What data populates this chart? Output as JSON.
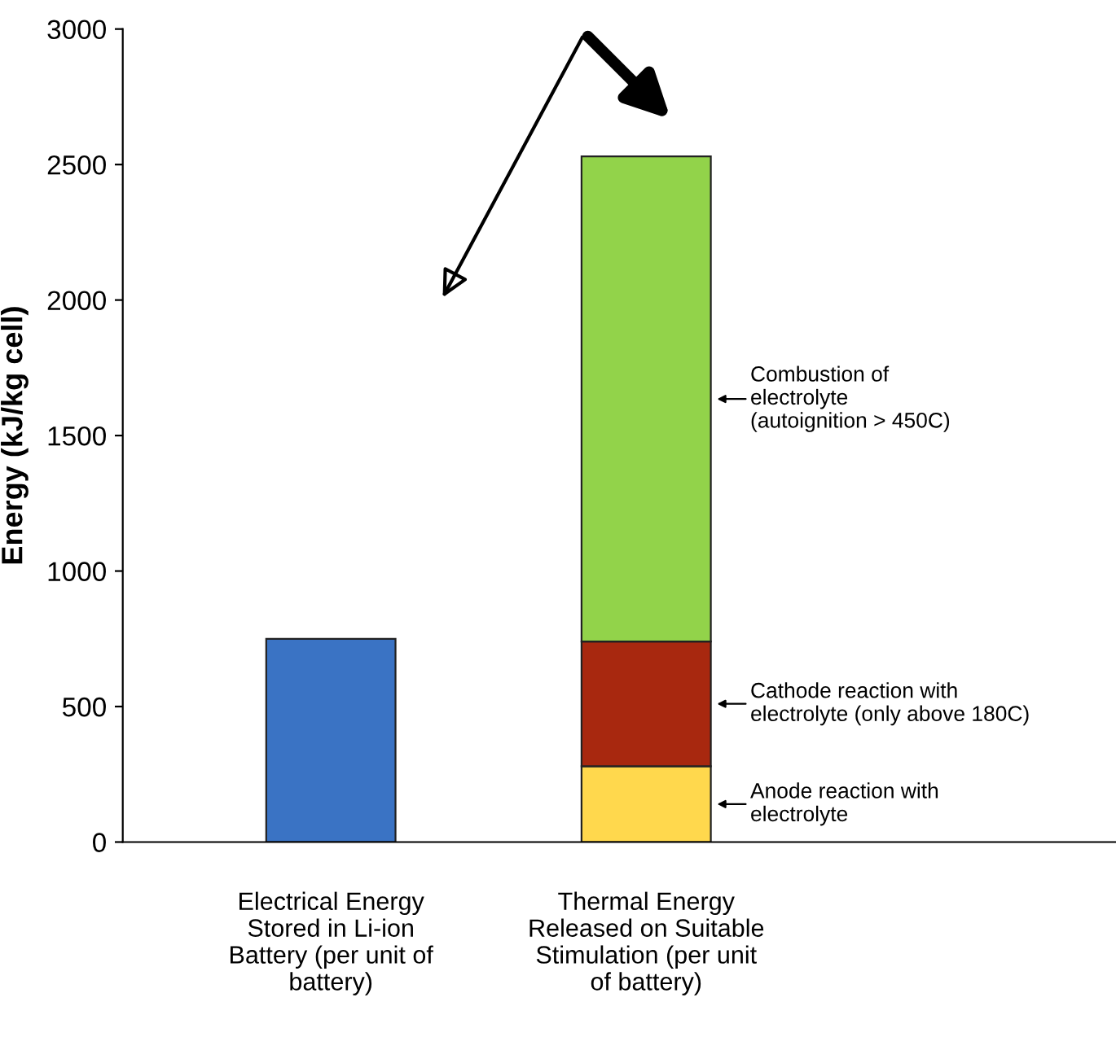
{
  "chart_data": {
    "type": "bar",
    "stacked": true,
    "ylabel": "Energy (kJ/kg cell)",
    "categories": [
      "Electrical Energy\nStored in Li-ion\nBattery (per unit of\nbattery)",
      "Thermal Energy\nReleased on Suitable\nStimulation (per unit\nof battery)"
    ],
    "series": [
      {
        "color": "#3a73c4",
        "values": [
          750,
          null
        ]
      },
      {
        "color": "#ffd84d",
        "values": [
          null,
          280
        ]
      },
      {
        "color": "#a8280f",
        "values": [
          null,
          460
        ]
      },
      {
        "color": "#92d34a",
        "values": [
          null,
          1790
        ]
      }
    ],
    "ylim": [
      0,
      3000
    ],
    "yticks": [
      0,
      500,
      1000,
      1500,
      2000,
      2500,
      3000
    ],
    "grid": false,
    "legend": false,
    "annotations": [
      "Combustion of\nelectrolyte\n(autoignition > 450C)",
      "Cathode reaction with\nelectrolyte (only above 180C)",
      "Anode reaction with\nelectrolyte"
    ]
  }
}
